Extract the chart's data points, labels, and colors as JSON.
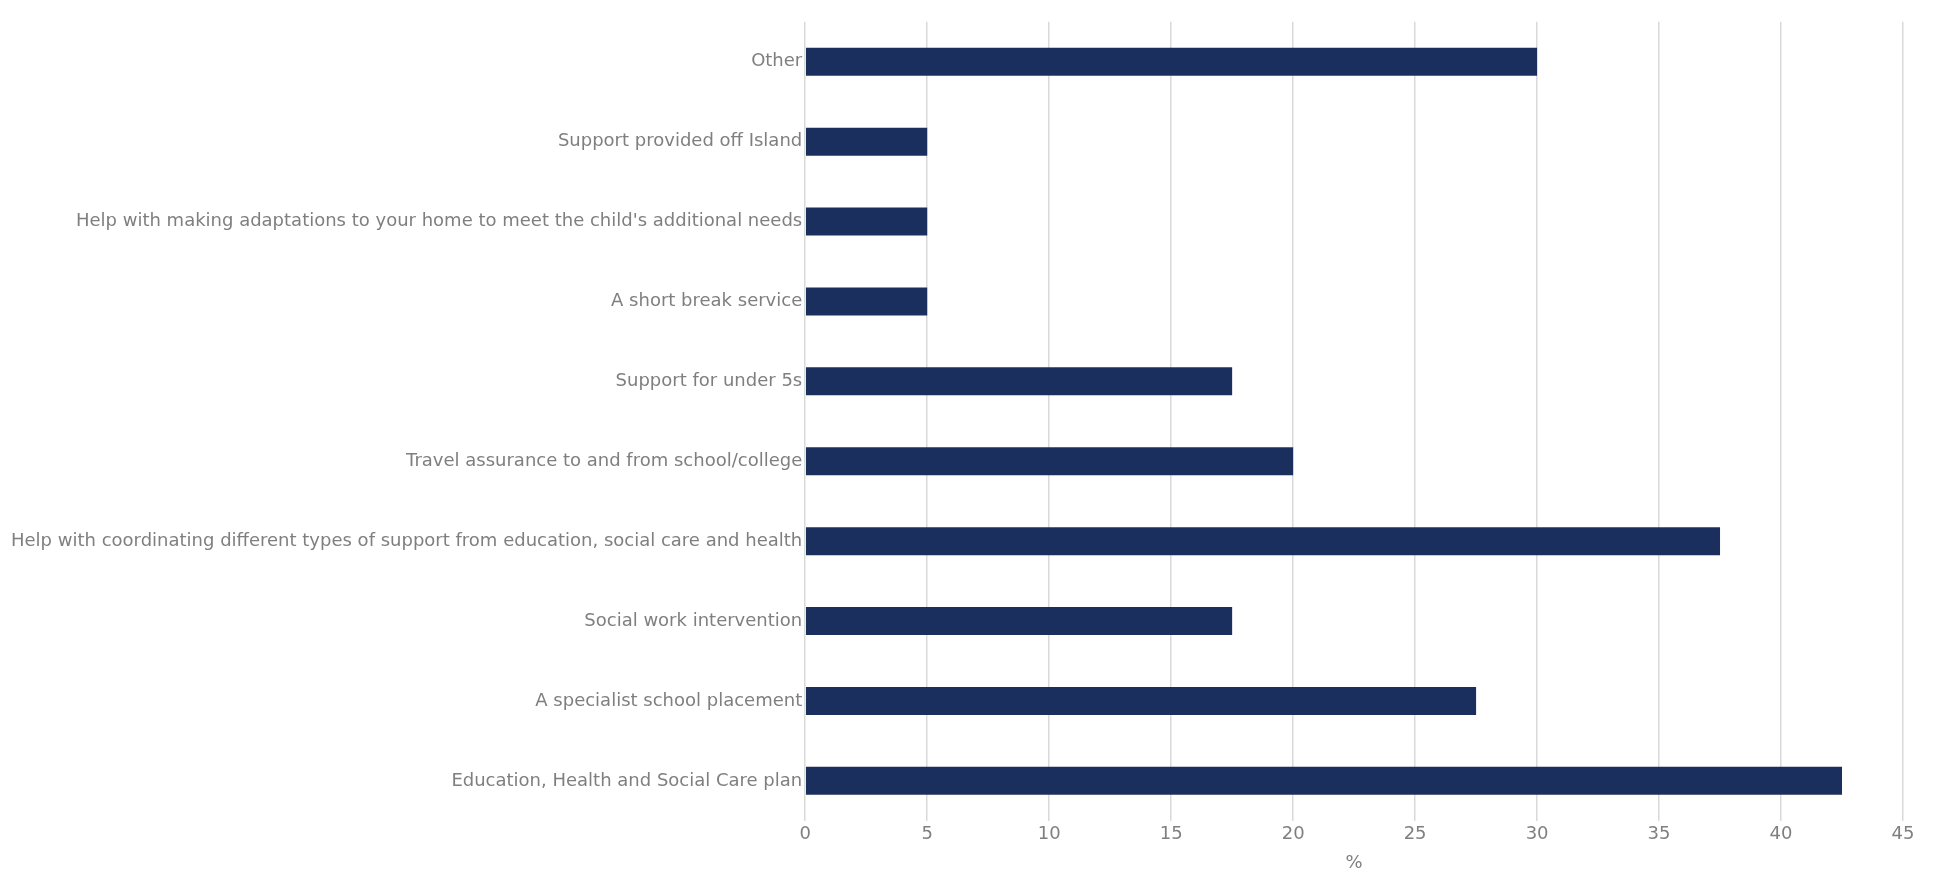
{
  "chart_data": {
    "type": "bar",
    "orientation": "horizontal",
    "xlabel": "%",
    "categories": [
      "Other",
      "Support provided off Island",
      "Help with making adaptations to your home to meet the child's additional needs",
      "A short break service",
      "Support for under 5s",
      "Travel assurance to and from school/college",
      "Help with coordinating different types of support from education, social care and health",
      "Social work intervention",
      "A specialist school placement",
      "Education, Health and Social Care plan"
    ],
    "values": [
      30,
      5,
      5,
      5,
      17.5,
      20,
      37.5,
      17.5,
      27.5,
      42.5
    ],
    "color": "#1b2f5e",
    "xlim": [
      0,
      45
    ],
    "xticks": [
      0,
      5,
      10,
      15,
      20,
      25,
      30,
      35,
      40,
      45
    ],
    "grid": "x",
    "legend": false
  }
}
